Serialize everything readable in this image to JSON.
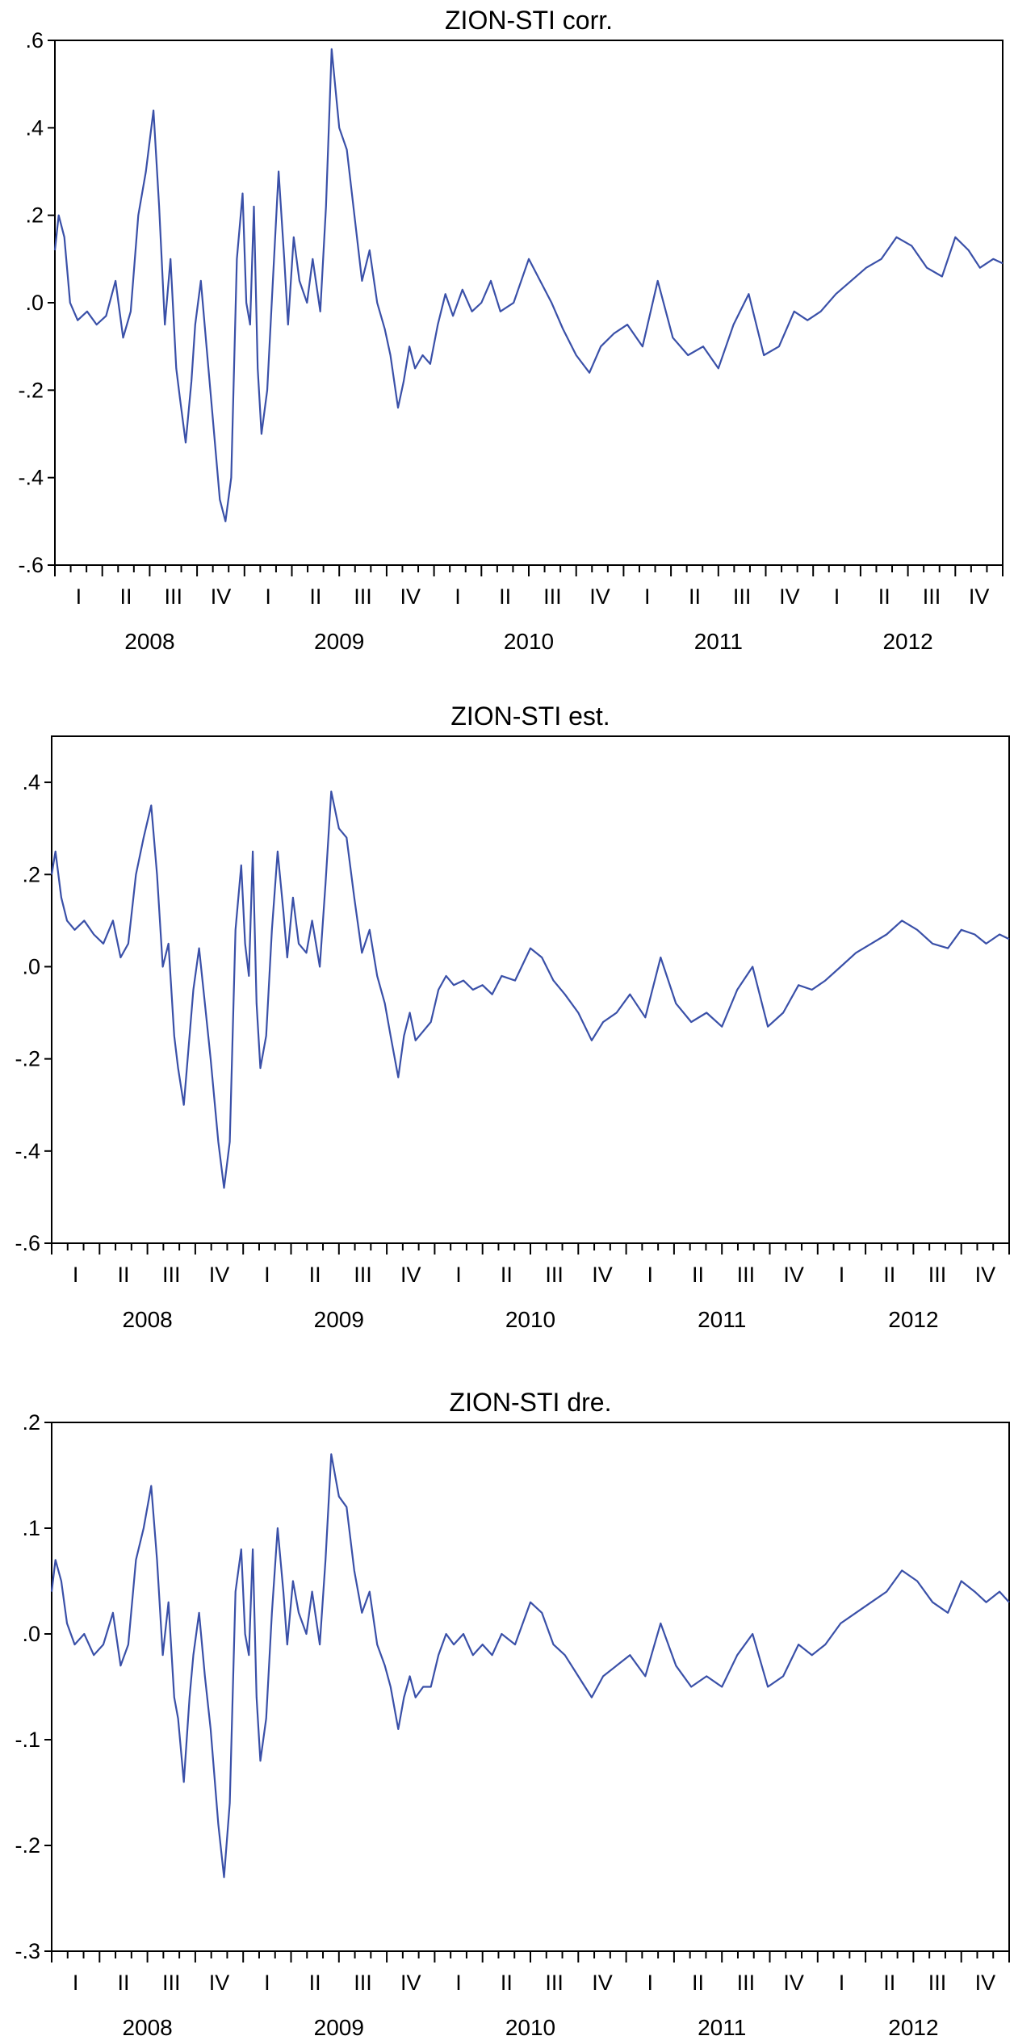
{
  "colors": {
    "line": "#3a50a8",
    "axis": "#000000",
    "background": "#ffffff"
  },
  "chart_data": [
    {
      "type": "line",
      "title": "ZION-STI corr.",
      "xlabel": "",
      "ylabel": "",
      "ylim": [
        -0.6,
        0.6
      ],
      "yticks": [
        0.6,
        0.4,
        0.2,
        0.0,
        -0.2,
        -0.4,
        -0.6
      ],
      "ytick_labels": [
        ".6",
        ".4",
        ".2",
        ".0",
        "-.2",
        "-.4",
        "-.6"
      ],
      "xlim": [
        2008.0,
        2013.0
      ],
      "quarter_labels": [
        "I",
        "II",
        "III",
        "IV",
        "I",
        "II",
        "III",
        "IV",
        "I",
        "II",
        "III",
        "IV",
        "I",
        "II",
        "III",
        "IV",
        "I",
        "II",
        "III",
        "IV"
      ],
      "year_labels": [
        "2008",
        "2009",
        "2010",
        "2011",
        "2012"
      ],
      "grid": false,
      "legend": "none",
      "x": [
        2008.0,
        2008.02,
        2008.05,
        2008.08,
        2008.12,
        2008.17,
        2008.22,
        2008.27,
        2008.32,
        2008.36,
        2008.4,
        2008.44,
        2008.48,
        2008.52,
        2008.55,
        2008.58,
        2008.61,
        2008.64,
        2008.66,
        2008.69,
        2008.72,
        2008.74,
        2008.77,
        2008.8,
        2008.83,
        2008.87,
        2008.9,
        2008.93,
        2008.96,
        2008.99,
        2009.01,
        2009.03,
        2009.05,
        2009.07,
        2009.09,
        2009.12,
        2009.15,
        2009.18,
        2009.21,
        2009.23,
        2009.26,
        2009.29,
        2009.33,
        2009.36,
        2009.4,
        2009.43,
        2009.46,
        2009.5,
        2009.54,
        2009.58,
        2009.62,
        2009.66,
        2009.7,
        2009.74,
        2009.77,
        2009.81,
        2009.84,
        2009.87,
        2009.9,
        2009.94,
        2009.98,
        2010.02,
        2010.06,
        2010.1,
        2010.15,
        2010.2,
        2010.25,
        2010.3,
        2010.35,
        2010.42,
        2010.5,
        2010.56,
        2010.62,
        2010.68,
        2010.75,
        2010.82,
        2010.88,
        2010.95,
        2011.02,
        2011.1,
        2011.18,
        2011.26,
        2011.34,
        2011.42,
        2011.5,
        2011.58,
        2011.66,
        2011.74,
        2011.82,
        2011.9,
        2011.97,
        2012.04,
        2012.12,
        2012.2,
        2012.28,
        2012.36,
        2012.44,
        2012.52,
        2012.6,
        2012.68,
        2012.75,
        2012.82,
        2012.88,
        2012.95,
        2013.0
      ],
      "y": [
        0.12,
        0.2,
        0.15,
        0.0,
        -0.04,
        -0.02,
        -0.05,
        -0.03,
        0.05,
        -0.08,
        -0.02,
        0.2,
        0.3,
        0.44,
        0.22,
        -0.05,
        0.1,
        -0.15,
        -0.22,
        -0.32,
        -0.18,
        -0.05,
        0.05,
        -0.1,
        -0.25,
        -0.45,
        -0.5,
        -0.4,
        0.1,
        0.25,
        0.0,
        -0.05,
        0.22,
        -0.15,
        -0.3,
        -0.2,
        0.05,
        0.3,
        0.1,
        -0.05,
        0.15,
        0.05,
        0.0,
        0.1,
        -0.02,
        0.22,
        0.58,
        0.4,
        0.35,
        0.2,
        0.05,
        0.12,
        0.0,
        -0.06,
        -0.12,
        -0.24,
        -0.18,
        -0.1,
        -0.15,
        -0.12,
        -0.14,
        -0.05,
        0.02,
        -0.03,
        0.03,
        -0.02,
        0.0,
        0.05,
        -0.02,
        0.0,
        0.1,
        0.05,
        0.0,
        -0.06,
        -0.12,
        -0.16,
        -0.1,
        -0.07,
        -0.05,
        -0.1,
        0.05,
        -0.08,
        -0.12,
        -0.1,
        -0.15,
        -0.05,
        0.02,
        -0.12,
        -0.1,
        -0.02,
        -0.04,
        -0.02,
        0.02,
        0.05,
        0.08,
        0.1,
        0.15,
        0.13,
        0.08,
        0.06,
        0.15,
        0.12,
        0.08,
        0.1,
        0.09
      ]
    },
    {
      "type": "line",
      "title": "ZION-STI est.",
      "xlabel": "",
      "ylabel": "",
      "ylim": [
        -0.6,
        0.5
      ],
      "yticks": [
        0.4,
        0.2,
        0.0,
        -0.2,
        -0.4,
        -0.6
      ],
      "ytick_labels": [
        ".4",
        ".2",
        ".0",
        "-.2",
        "-.4",
        "-.6"
      ],
      "xlim": [
        2008.0,
        2013.0
      ],
      "quarter_labels": [
        "I",
        "II",
        "III",
        "IV",
        "I",
        "II",
        "III",
        "IV",
        "I",
        "II",
        "III",
        "IV",
        "I",
        "II",
        "III",
        "IV",
        "I",
        "II",
        "III",
        "IV"
      ],
      "year_labels": [
        "2008",
        "2009",
        "2010",
        "2011",
        "2012"
      ],
      "grid": false,
      "legend": "none",
      "x": [
        2008.0,
        2008.02,
        2008.05,
        2008.08,
        2008.12,
        2008.17,
        2008.22,
        2008.27,
        2008.32,
        2008.36,
        2008.4,
        2008.44,
        2008.48,
        2008.52,
        2008.55,
        2008.58,
        2008.61,
        2008.64,
        2008.66,
        2008.69,
        2008.72,
        2008.74,
        2008.77,
        2008.8,
        2008.83,
        2008.87,
        2008.9,
        2008.93,
        2008.96,
        2008.99,
        2009.01,
        2009.03,
        2009.05,
        2009.07,
        2009.09,
        2009.12,
        2009.15,
        2009.18,
        2009.21,
        2009.23,
        2009.26,
        2009.29,
        2009.33,
        2009.36,
        2009.4,
        2009.43,
        2009.46,
        2009.5,
        2009.54,
        2009.58,
        2009.62,
        2009.66,
        2009.7,
        2009.74,
        2009.77,
        2009.81,
        2009.84,
        2009.87,
        2009.9,
        2009.94,
        2009.98,
        2010.02,
        2010.06,
        2010.1,
        2010.15,
        2010.2,
        2010.25,
        2010.3,
        2010.35,
        2010.42,
        2010.5,
        2010.56,
        2010.62,
        2010.68,
        2010.75,
        2010.82,
        2010.88,
        2010.95,
        2011.02,
        2011.1,
        2011.18,
        2011.26,
        2011.34,
        2011.42,
        2011.5,
        2011.58,
        2011.66,
        2011.74,
        2011.82,
        2011.9,
        2011.97,
        2012.04,
        2012.12,
        2012.2,
        2012.28,
        2012.36,
        2012.44,
        2012.52,
        2012.6,
        2012.68,
        2012.75,
        2012.82,
        2012.88,
        2012.95,
        2013.0
      ],
      "y": [
        0.2,
        0.25,
        0.15,
        0.1,
        0.08,
        0.1,
        0.07,
        0.05,
        0.1,
        0.02,
        0.05,
        0.2,
        0.28,
        0.35,
        0.2,
        0.0,
        0.05,
        -0.15,
        -0.22,
        -0.3,
        -0.15,
        -0.05,
        0.04,
        -0.08,
        -0.2,
        -0.38,
        -0.48,
        -0.38,
        0.08,
        0.22,
        0.05,
        -0.02,
        0.25,
        -0.08,
        -0.22,
        -0.15,
        0.08,
        0.25,
        0.12,
        0.02,
        0.15,
        0.05,
        0.03,
        0.1,
        0.0,
        0.18,
        0.38,
        0.3,
        0.28,
        0.15,
        0.03,
        0.08,
        -0.02,
        -0.08,
        -0.15,
        -0.24,
        -0.15,
        -0.1,
        -0.16,
        -0.14,
        -0.12,
        -0.05,
        -0.02,
        -0.04,
        -0.03,
        -0.05,
        -0.04,
        -0.06,
        -0.02,
        -0.03,
        0.04,
        0.02,
        -0.03,
        -0.06,
        -0.1,
        -0.16,
        -0.12,
        -0.1,
        -0.06,
        -0.11,
        0.02,
        -0.08,
        -0.12,
        -0.1,
        -0.13,
        -0.05,
        0.0,
        -0.13,
        -0.1,
        -0.04,
        -0.05,
        -0.03,
        0.0,
        0.03,
        0.05,
        0.07,
        0.1,
        0.08,
        0.05,
        0.04,
        0.08,
        0.07,
        0.05,
        0.07,
        0.06
      ]
    },
    {
      "type": "line",
      "title": "ZION-STI dre.",
      "xlabel": "",
      "ylabel": "",
      "ylim": [
        -0.3,
        0.2
      ],
      "yticks": [
        0.2,
        0.1,
        0.0,
        -0.1,
        -0.2,
        -0.3
      ],
      "ytick_labels": [
        ".2",
        ".1",
        ".0",
        "-.1",
        "-.2",
        "-.3"
      ],
      "xlim": [
        2008.0,
        2013.0
      ],
      "quarter_labels": [
        "I",
        "II",
        "III",
        "IV",
        "I",
        "II",
        "III",
        "IV",
        "I",
        "II",
        "III",
        "IV",
        "I",
        "II",
        "III",
        "IV",
        "I",
        "II",
        "III",
        "IV"
      ],
      "year_labels": [
        "2008",
        "2009",
        "2010",
        "2011",
        "2012"
      ],
      "grid": false,
      "legend": "none",
      "x": [
        2008.0,
        2008.02,
        2008.05,
        2008.08,
        2008.12,
        2008.17,
        2008.22,
        2008.27,
        2008.32,
        2008.36,
        2008.4,
        2008.44,
        2008.48,
        2008.52,
        2008.55,
        2008.58,
        2008.61,
        2008.64,
        2008.66,
        2008.69,
        2008.72,
        2008.74,
        2008.77,
        2008.8,
        2008.83,
        2008.87,
        2008.9,
        2008.93,
        2008.96,
        2008.99,
        2009.01,
        2009.03,
        2009.05,
        2009.07,
        2009.09,
        2009.12,
        2009.15,
        2009.18,
        2009.21,
        2009.23,
        2009.26,
        2009.29,
        2009.33,
        2009.36,
        2009.4,
        2009.43,
        2009.46,
        2009.5,
        2009.54,
        2009.58,
        2009.62,
        2009.66,
        2009.7,
        2009.74,
        2009.77,
        2009.81,
        2009.84,
        2009.87,
        2009.9,
        2009.94,
        2009.98,
        2010.02,
        2010.06,
        2010.1,
        2010.15,
        2010.2,
        2010.25,
        2010.3,
        2010.35,
        2010.42,
        2010.5,
        2010.56,
        2010.62,
        2010.68,
        2010.75,
        2010.82,
        2010.88,
        2010.95,
        2011.02,
        2011.1,
        2011.18,
        2011.26,
        2011.34,
        2011.42,
        2011.5,
        2011.58,
        2011.66,
        2011.74,
        2011.82,
        2011.9,
        2011.97,
        2012.04,
        2012.12,
        2012.2,
        2012.28,
        2012.36,
        2012.44,
        2012.52,
        2012.6,
        2012.68,
        2012.75,
        2012.82,
        2012.88,
        2012.95,
        2013.0
      ],
      "y": [
        0.04,
        0.07,
        0.05,
        0.01,
        -0.01,
        0.0,
        -0.02,
        -0.01,
        0.02,
        -0.03,
        -0.01,
        0.07,
        0.1,
        0.14,
        0.07,
        -0.02,
        0.03,
        -0.06,
        -0.08,
        -0.14,
        -0.06,
        -0.02,
        0.02,
        -0.04,
        -0.09,
        -0.18,
        -0.23,
        -0.16,
        0.04,
        0.08,
        0.0,
        -0.02,
        0.08,
        -0.06,
        -0.12,
        -0.08,
        0.02,
        0.1,
        0.04,
        -0.01,
        0.05,
        0.02,
        0.0,
        0.04,
        -0.01,
        0.07,
        0.17,
        0.13,
        0.12,
        0.06,
        0.02,
        0.04,
        -0.01,
        -0.03,
        -0.05,
        -0.09,
        -0.06,
        -0.04,
        -0.06,
        -0.05,
        -0.05,
        -0.02,
        0.0,
        -0.01,
        0.0,
        -0.02,
        -0.01,
        -0.02,
        0.0,
        -0.01,
        0.03,
        0.02,
        -0.01,
        -0.02,
        -0.04,
        -0.06,
        -0.04,
        -0.03,
        -0.02,
        -0.04,
        0.01,
        -0.03,
        -0.05,
        -0.04,
        -0.05,
        -0.02,
        0.0,
        -0.05,
        -0.04,
        -0.01,
        -0.02,
        -0.01,
        0.01,
        0.02,
        0.03,
        0.04,
        0.06,
        0.05,
        0.03,
        0.02,
        0.05,
        0.04,
        0.03,
        0.04,
        0.03
      ]
    }
  ]
}
